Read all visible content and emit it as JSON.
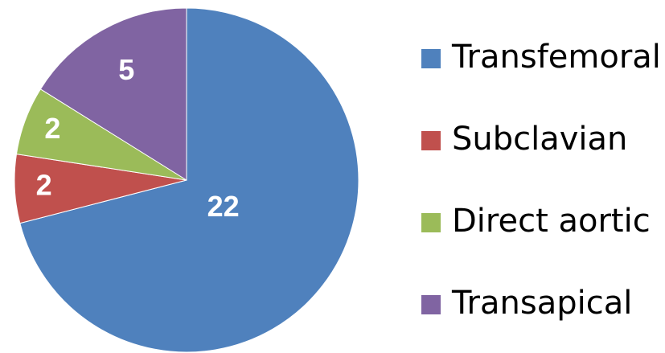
{
  "chart_data": {
    "type": "pie",
    "categories": [
      "Transfemoral",
      "Subclavian",
      "Direct aortic",
      "Transapical"
    ],
    "values": [
      22,
      2,
      2,
      5
    ],
    "colors": [
      "#4f81bd",
      "#c0504d",
      "#9bbb59",
      "#8064a2"
    ]
  }
}
